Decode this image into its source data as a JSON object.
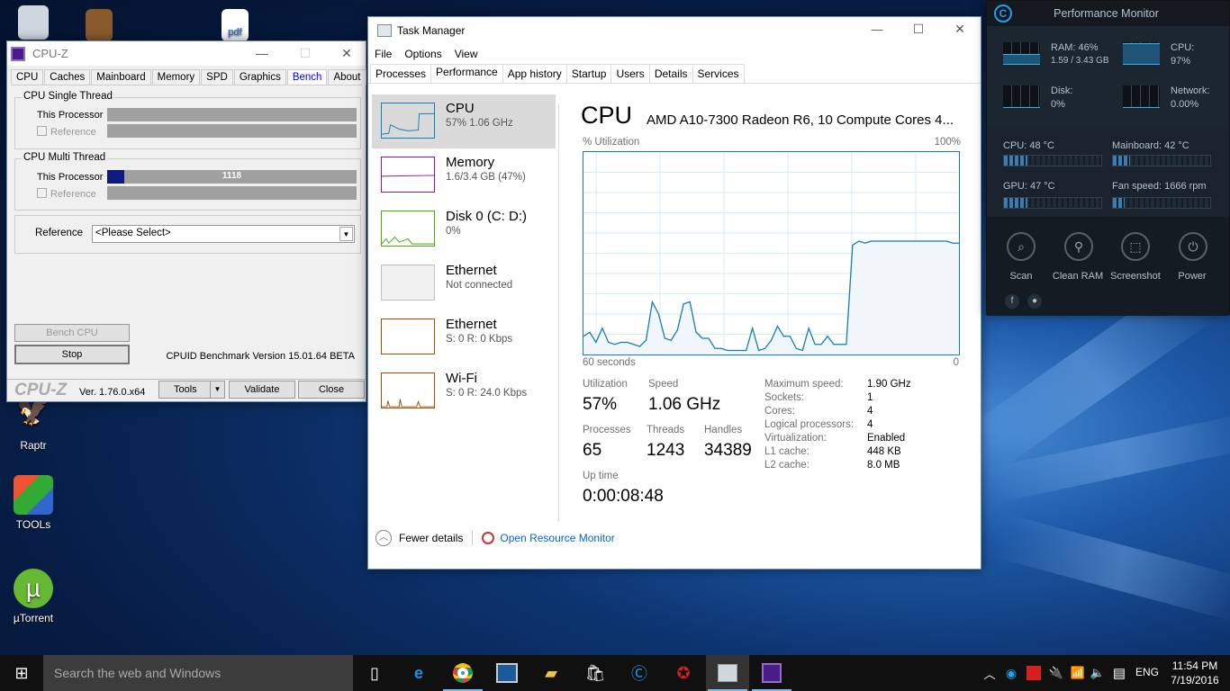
{
  "desktop": {
    "icons": [
      {
        "label": "Raptr"
      },
      {
        "label": "TOOLs"
      },
      {
        "label": "µTorrent"
      },
      {
        "label": "pdf"
      }
    ]
  },
  "cpuz": {
    "title": "CPU-Z",
    "tabs": [
      "CPU",
      "Caches",
      "Mainboard",
      "Memory",
      "SPD",
      "Graphics",
      "Bench",
      "About"
    ],
    "active_tab": "Bench",
    "single_thread": {
      "legend": "CPU Single Thread",
      "this_processor": "This Processor",
      "reference": "Reference"
    },
    "multi_thread": {
      "legend": "CPU Multi Thread",
      "this_processor": "This Processor",
      "reference": "Reference",
      "score": "1118",
      "fill_fraction": 0.07
    },
    "reference_label": "Reference",
    "reference_select": "<Please Select>",
    "bench_cpu": "Bench CPU",
    "stop": "Stop",
    "version_text": "CPUID Benchmark Version 15.01.64 BETA",
    "logo": "CPU-Z",
    "ver": "Ver. 1.76.0.x64",
    "tools": "Tools",
    "validate": "Validate",
    "close": "Close"
  },
  "taskmgr": {
    "title": "Task Manager",
    "menu": [
      "File",
      "Options",
      "View"
    ],
    "tabs": [
      "Processes",
      "Performance",
      "App history",
      "Startup",
      "Users",
      "Details",
      "Services"
    ],
    "active_tab": "Performance",
    "sidebar": [
      {
        "name": "CPU",
        "value": "57%  1.06 GHz",
        "color": "#117dbb"
      },
      {
        "name": "Memory",
        "value": "1.6/3.4 GB (47%)",
        "color": "#8b12ae"
      },
      {
        "name": "Disk 0 (C: D:)",
        "value": "0%",
        "color": "#4da60c"
      },
      {
        "name": "Ethernet",
        "value": "Not connected",
        "color": "#c0c0c0"
      },
      {
        "name": "Ethernet",
        "value": "S: 0  R: 0 Kbps",
        "color": "#a74f01"
      },
      {
        "name": "Wi-Fi",
        "value": "S: 0  R: 24.0 Kbps",
        "color": "#a74f01"
      }
    ],
    "heading": "CPU",
    "cpu_model": "AMD A10-7300 Radeon R6, 10 Compute Cores 4...",
    "graph": {
      "ylabel": "% Utilization",
      "ymax_label": "100%",
      "xlabel_left": "60 seconds",
      "xlabel_right": "0",
      "values": [
        9,
        11,
        6,
        13,
        6,
        5,
        6,
        6,
        5,
        4,
        7,
        26,
        20,
        8,
        7,
        12,
        25,
        26,
        11,
        8,
        8,
        3,
        3,
        2,
        2,
        2,
        2,
        13,
        2,
        3,
        7,
        14,
        9,
        9,
        3,
        2,
        13,
        5,
        5,
        9,
        5,
        5,
        5,
        54,
        56,
        55,
        56,
        56,
        56,
        56,
        56,
        56,
        56,
        56,
        56,
        56,
        56,
        56,
        56,
        55,
        55
      ]
    },
    "stats": {
      "utilization_label": "Utilization",
      "utilization": "57%",
      "speed_label": "Speed",
      "speed": "1.06 GHz",
      "processes_label": "Processes",
      "processes": "65",
      "threads_label": "Threads",
      "threads": "1243",
      "handles_label": "Handles",
      "handles": "34389",
      "uptime_label": "Up time",
      "uptime": "0:00:08:48"
    },
    "specs": [
      [
        "Maximum speed:",
        "1.90 GHz"
      ],
      [
        "Sockets:",
        "1"
      ],
      [
        "Cores:",
        "4"
      ],
      [
        "Logical processors:",
        "4"
      ],
      [
        "Virtualization:",
        "Enabled"
      ],
      [
        "L1 cache:",
        "448 KB"
      ],
      [
        "L2 cache:",
        "8.0 MB"
      ]
    ],
    "fewer_details": "Fewer details",
    "open_resmon": "Open Resource Monitor"
  },
  "perfmon": {
    "title": "Performance Monitor",
    "ram_label": "RAM: 46%",
    "ram_detail": "1.59 / 3.43 GB",
    "cpu_label": "CPU:",
    "cpu_value": "97%",
    "disk_label": "Disk:",
    "disk_value": "0%",
    "net_label": "Network:",
    "net_value": "0.00%",
    "cpu_temp": "CPU:  48 °C",
    "mb_temp": "Mainboard:  42 °C",
    "gpu_temp": "GPU:  47 °C",
    "fan": "Fan speed:  1666 rpm",
    "levels": {
      "ram": 0.46,
      "cpu": 0.97,
      "cpu_temp": 0.24,
      "mb_temp": 0.18,
      "gpu_temp": 0.24,
      "fan": 0.12
    },
    "buttons": [
      "Scan",
      "Clean RAM",
      "Screenshot",
      "Power"
    ]
  },
  "taskbar": {
    "search": "Search the web and Windows",
    "lang": "ENG",
    "time": "11:54 PM",
    "date": "7/19/2016"
  }
}
